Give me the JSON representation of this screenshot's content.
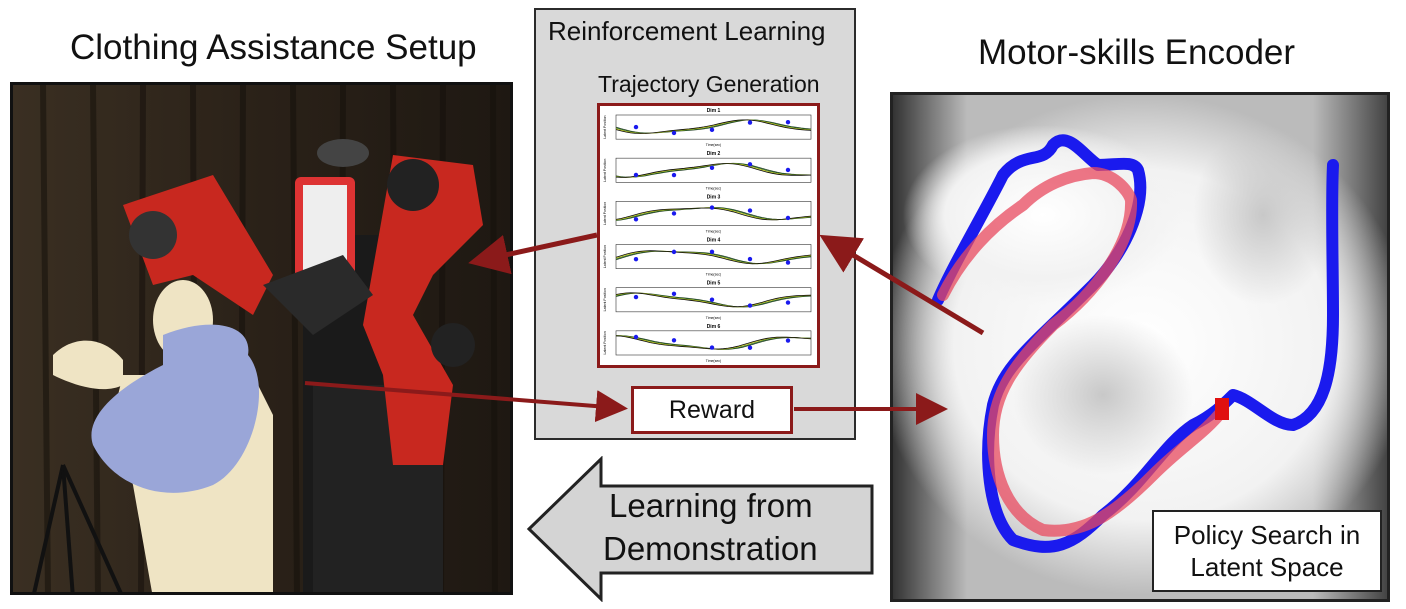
{
  "titles": {
    "left": "Clothing Assistance Setup",
    "center": "Reinforcement Learning",
    "right": "Motor-skills Encoder"
  },
  "center_panel": {
    "subtitle": "Trajectory Generation",
    "reward": "Reward"
  },
  "latent_panel": {
    "caption_line1": "Policy Search in",
    "caption_line2": "Latent Space"
  },
  "lfd_arrow": {
    "line1": "Learning from",
    "line2": "Demonstration"
  },
  "mini_plots": [
    {
      "title": "Dim 1",
      "ylabel": "Latent Position",
      "xlabel": "Time(sec)"
    },
    {
      "title": "Dim 2",
      "ylabel": "Latent Position",
      "xlabel": "Time(sec)"
    },
    {
      "title": "Dim 3",
      "ylabel": "Latent Position",
      "xlabel": "Time(sec)"
    },
    {
      "title": "Dim 4",
      "ylabel": "Latent Position",
      "xlabel": "Time(sec)"
    },
    {
      "title": "Dim 5",
      "ylabel": "Latent Position",
      "xlabel": "Time(sec)"
    },
    {
      "title": "Dim 6",
      "ylabel": "Latent Position",
      "xlabel": "Time(sec)"
    }
  ],
  "colors": {
    "arrow": "#8b1a1a",
    "blue_trajectory": "#1a1aee",
    "red_trajectory": "#e84a5f",
    "panel_gray": "#d9d9d9"
  }
}
